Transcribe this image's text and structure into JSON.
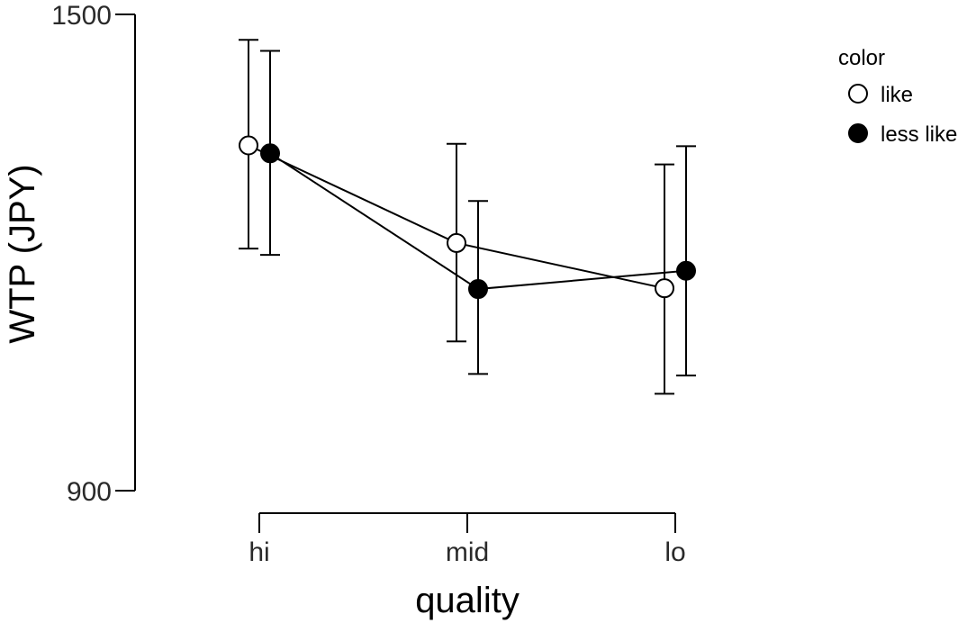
{
  "chart_data": {
    "type": "line",
    "x_label": "quality",
    "y_label": "WTP (JPY)",
    "categories": [
      "hi",
      "mid",
      "lo"
    ],
    "y_ticks": [
      1500,
      900
    ],
    "ylim": [
      900,
      1500
    ],
    "legend": {
      "title": "color",
      "position": "top-right"
    },
    "series": [
      {
        "name": "like",
        "marker": "open-circle",
        "fill": "#ffffff",
        "values": [
          1335,
          1212,
          1155
        ],
        "error_low": [
          1205,
          1088,
          1022
        ],
        "error_high": [
          1468,
          1337,
          1311
        ]
      },
      {
        "name": "less like",
        "marker": "filled-circle",
        "fill": "#000000",
        "values": [
          1325,
          1154,
          1177
        ],
        "error_low": [
          1197,
          1047,
          1045
        ],
        "error_high": [
          1454,
          1265,
          1334
        ]
      }
    ]
  }
}
